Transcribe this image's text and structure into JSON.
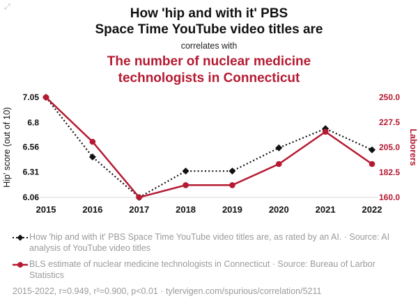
{
  "header": {
    "title_lines": [
      "How 'hip and with it' PBS",
      "Space Time YouTube video titles are"
    ],
    "connector": "correlates with",
    "subtitle_lines": [
      "The number of nuclear medicine",
      "technologists in Connecticut"
    ],
    "accent_color": "#b51a32"
  },
  "corner": {
    "expand_glyph": "⤢"
  },
  "chart_data": {
    "type": "line",
    "x": [
      "2015",
      "2016",
      "2017",
      "2018",
      "2019",
      "2020",
      "2021",
      "2022"
    ],
    "series": [
      {
        "name": "hip-score",
        "label": "How 'hip and with it' PBS Space Time YouTube video titles are, as rated by an AI.",
        "axis": "left",
        "color": "#111111",
        "style": "dotted",
        "marker": "diamond",
        "values": [
          7.05,
          6.46,
          6.06,
          6.32,
          6.32,
          6.55,
          6.74,
          6.53
        ]
      },
      {
        "name": "laborers",
        "label": "BLS estimate of nuclear medicine technologists in Connecticut",
        "axis": "right",
        "color": "#b51a32",
        "style": "solid",
        "marker": "circle",
        "values": [
          250,
          210,
          160,
          171,
          171,
          190,
          219,
          190
        ]
      }
    ],
    "axes": {
      "left": {
        "label": "Hip' score (out of 10)",
        "ticks": [
          "7.05",
          "6.8",
          "6.56",
          "6.31",
          "6.06"
        ],
        "tick_values": [
          7.05,
          6.8,
          6.56,
          6.31,
          6.06
        ],
        "min": 6.06,
        "max": 7.05
      },
      "right": {
        "label": "Laborers",
        "ticks": [
          "250.0",
          "227.5",
          "205.0",
          "182.5",
          "160.0"
        ],
        "tick_values": [
          250,
          227.5,
          205,
          182.5,
          160
        ],
        "min": 160,
        "max": 250
      }
    },
    "grid": false,
    "legend_position": "bottom"
  },
  "legend": {
    "items": [
      {
        "series": "hip-score",
        "text": "How 'hip and with it' PBS Space Time YouTube video titles are, as rated by an AI. · Source: AI analysis of YouTube video titles"
      },
      {
        "series": "laborers",
        "text": "BLS estimate of nuclear medicine technologists in Connecticut · Source: Bureau of Larbor Statistics"
      }
    ]
  },
  "footer": {
    "stats": "2015-2022, r=0.949, r²=0.900, p<0.01 · tylervigen.com/spurious/correlation/5211"
  }
}
